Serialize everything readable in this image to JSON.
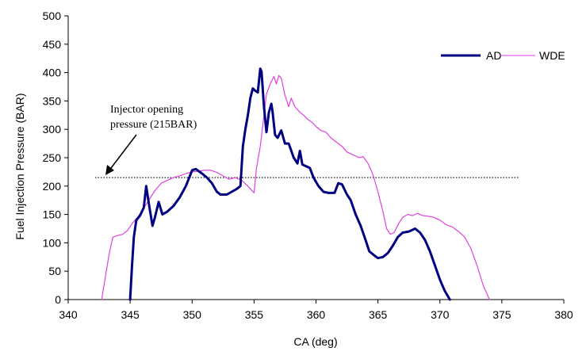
{
  "chart_data": {
    "type": "line",
    "xlabel": "CA (deg)",
    "ylabel": "Fuel Injection Pressure (BAR)",
    "xlim": [
      340,
      380
    ],
    "ylim": [
      0,
      500
    ],
    "x_ticks": [
      "340",
      "345",
      "350",
      "355",
      "360",
      "365",
      "370",
      "375",
      "380"
    ],
    "y_ticks": [
      "0",
      "50",
      "100",
      "150",
      "200",
      "250",
      "300",
      "350",
      "400",
      "450",
      "500"
    ],
    "grid": false,
    "legend": "top-right",
    "series": [
      {
        "name": "AD",
        "color": "#000080",
        "points": [
          [
            345.0,
            0
          ],
          [
            345.15,
            60
          ],
          [
            345.3,
            110
          ],
          [
            345.5,
            140
          ],
          [
            345.8,
            148
          ],
          [
            346.1,
            162
          ],
          [
            346.3,
            200
          ],
          [
            346.5,
            170
          ],
          [
            346.8,
            130
          ],
          [
            347.0,
            145
          ],
          [
            347.3,
            172
          ],
          [
            347.6,
            150
          ],
          [
            348.0,
            155
          ],
          [
            348.5,
            165
          ],
          [
            349.0,
            180
          ],
          [
            349.5,
            200
          ],
          [
            350.0,
            228
          ],
          [
            350.3,
            230
          ],
          [
            350.8,
            222
          ],
          [
            351.2,
            215
          ],
          [
            351.6,
            205
          ],
          [
            352.0,
            190
          ],
          [
            352.3,
            185
          ],
          [
            352.8,
            185
          ],
          [
            353.2,
            190
          ],
          [
            353.6,
            195
          ],
          [
            353.9,
            200
          ],
          [
            354.1,
            270
          ],
          [
            354.3,
            300
          ],
          [
            354.5,
            325
          ],
          [
            354.7,
            355
          ],
          [
            354.9,
            372
          ],
          [
            355.1,
            368
          ],
          [
            355.3,
            365
          ],
          [
            355.5,
            407
          ],
          [
            355.6,
            402
          ],
          [
            355.8,
            340
          ],
          [
            356.0,
            295
          ],
          [
            356.2,
            330
          ],
          [
            356.4,
            345
          ],
          [
            356.5,
            330
          ],
          [
            356.7,
            290
          ],
          [
            356.9,
            285
          ],
          [
            357.2,
            298
          ],
          [
            357.5,
            275
          ],
          [
            357.8,
            275
          ],
          [
            358.2,
            250
          ],
          [
            358.5,
            240
          ],
          [
            358.7,
            262
          ],
          [
            358.9,
            238
          ],
          [
            359.2,
            235
          ],
          [
            359.5,
            232
          ],
          [
            359.8,
            215
          ],
          [
            360.2,
            200
          ],
          [
            360.6,
            190
          ],
          [
            361.0,
            188
          ],
          [
            361.5,
            188
          ],
          [
            361.8,
            205
          ],
          [
            362.1,
            203
          ],
          [
            362.5,
            185
          ],
          [
            362.8,
            175
          ],
          [
            363.2,
            150
          ],
          [
            363.6,
            130
          ],
          [
            364.0,
            105
          ],
          [
            364.3,
            85
          ],
          [
            364.7,
            78
          ],
          [
            365.0,
            73
          ],
          [
            365.4,
            75
          ],
          [
            365.8,
            82
          ],
          [
            366.2,
            95
          ],
          [
            366.6,
            110
          ],
          [
            367.0,
            118
          ],
          [
            367.5,
            120
          ],
          [
            368.0,
            125
          ],
          [
            368.4,
            118
          ],
          [
            368.8,
            105
          ],
          [
            369.2,
            85
          ],
          [
            369.6,
            60
          ],
          [
            370.0,
            35
          ],
          [
            370.4,
            15
          ],
          [
            370.8,
            0
          ]
        ]
      },
      {
        "name": "WDE",
        "color": "#e040e0",
        "points": [
          [
            342.7,
            0
          ],
          [
            343.0,
            40
          ],
          [
            343.3,
            80
          ],
          [
            343.6,
            110
          ],
          [
            344.0,
            113
          ],
          [
            344.4,
            115
          ],
          [
            344.8,
            122
          ],
          [
            345.2,
            135
          ],
          [
            345.6,
            145
          ],
          [
            346.0,
            158
          ],
          [
            346.5,
            175
          ],
          [
            347.0,
            192
          ],
          [
            347.5,
            205
          ],
          [
            348.0,
            210
          ],
          [
            348.5,
            215
          ],
          [
            349.0,
            218
          ],
          [
            349.5,
            222
          ],
          [
            350.0,
            225
          ],
          [
            350.5,
            226
          ],
          [
            351.0,
            228
          ],
          [
            351.5,
            228
          ],
          [
            352.0,
            224
          ],
          [
            352.5,
            218
          ],
          [
            353.0,
            212
          ],
          [
            353.5,
            215
          ],
          [
            354.0,
            210
          ],
          [
            354.5,
            200
          ],
          [
            355.0,
            188
          ],
          [
            355.2,
            232
          ],
          [
            355.5,
            270
          ],
          [
            355.8,
            325
          ],
          [
            356.0,
            362
          ],
          [
            356.3,
            380
          ],
          [
            356.6,
            393
          ],
          [
            356.8,
            380
          ],
          [
            357.0,
            395
          ],
          [
            357.2,
            390
          ],
          [
            357.5,
            360
          ],
          [
            357.8,
            340
          ],
          [
            358.0,
            355
          ],
          [
            358.3,
            340
          ],
          [
            358.7,
            330
          ],
          [
            359.0,
            325
          ],
          [
            359.3,
            318
          ],
          [
            359.7,
            312
          ],
          [
            360.0,
            305
          ],
          [
            360.4,
            298
          ],
          [
            360.8,
            295
          ],
          [
            361.2,
            285
          ],
          [
            361.5,
            280
          ],
          [
            361.8,
            275
          ],
          [
            362.1,
            270
          ],
          [
            362.5,
            260
          ],
          [
            363.0,
            255
          ],
          [
            363.5,
            250
          ],
          [
            363.8,
            252
          ],
          [
            364.2,
            240
          ],
          [
            364.6,
            220
          ],
          [
            365.0,
            190
          ],
          [
            365.4,
            155
          ],
          [
            365.7,
            125
          ],
          [
            366.0,
            115
          ],
          [
            366.3,
            118
          ],
          [
            366.7,
            135
          ],
          [
            367.0,
            145
          ],
          [
            367.4,
            150
          ],
          [
            367.8,
            148
          ],
          [
            368.2,
            152
          ],
          [
            368.6,
            148
          ],
          [
            369.0,
            147
          ],
          [
            369.5,
            145
          ],
          [
            370.0,
            140
          ],
          [
            370.5,
            132
          ],
          [
            371.0,
            128
          ],
          [
            371.5,
            120
          ],
          [
            372.0,
            110
          ],
          [
            372.5,
            90
          ],
          [
            373.0,
            60
          ],
          [
            373.5,
            25
          ],
          [
            374.0,
            0
          ]
        ]
      }
    ],
    "reference_line": {
      "y": 215
    },
    "annotation": {
      "lines": [
        "Injector opening",
        "pressure (215BAR)"
      ]
    }
  }
}
